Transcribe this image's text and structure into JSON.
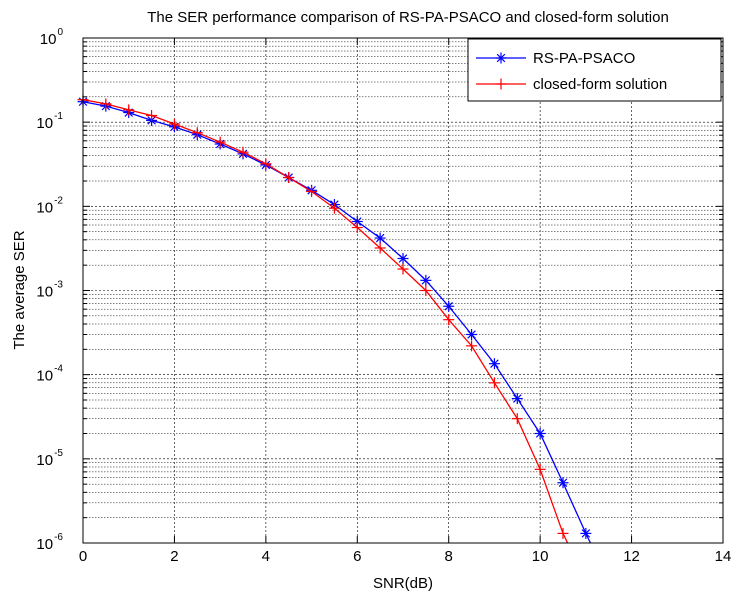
{
  "chart_data": {
    "type": "line",
    "title": "The SER performance comparison of RS-PA-PSACO and closed-form solution",
    "xlabel": "SNR(dB)",
    "ylabel": "The average SER",
    "xlim": [
      0,
      14
    ],
    "ylim": [
      1e-06,
      1
    ],
    "yscale": "log",
    "grid": true,
    "legend_position": "top-right",
    "x_ticks": [
      "0",
      "2",
      "4",
      "6",
      "8",
      "10",
      "12",
      "14"
    ],
    "y_ticks": [
      {
        "base": "10",
        "exp": "0"
      },
      {
        "base": "10",
        "exp": "-1"
      },
      {
        "base": "10",
        "exp": "-2"
      },
      {
        "base": "10",
        "exp": "-3"
      },
      {
        "base": "10",
        "exp": "-4"
      },
      {
        "base": "10",
        "exp": "-5"
      },
      {
        "base": "10",
        "exp": "-6"
      }
    ],
    "series": [
      {
        "name": "RS-PA-PSACO",
        "color": "#0000ff",
        "marker": "asterisk",
        "x": [
          0,
          0.5,
          1,
          1.5,
          2,
          2.5,
          3,
          3.5,
          4,
          4.5,
          5,
          5.5,
          6,
          6.5,
          7,
          7.5,
          8,
          8.5,
          9,
          9.5,
          10,
          10.5,
          11,
          11.1
        ],
        "y": [
          0.175,
          0.155,
          0.13,
          0.105,
          0.088,
          0.071,
          0.055,
          0.042,
          0.031,
          0.022,
          0.0155,
          0.0105,
          0.0066,
          0.0042,
          0.0024,
          0.00132,
          0.00065,
          0.0003,
          0.000135,
          5.2e-05,
          2e-05,
          5.2e-06,
          1.3e-06,
          1e-06
        ]
      },
      {
        "name": "closed-form solution",
        "color": "#ff0000",
        "marker": "plus",
        "x": [
          0,
          0.5,
          1,
          1.5,
          2,
          2.5,
          3,
          3.5,
          4,
          4.5,
          5,
          5.5,
          6,
          6.5,
          7,
          7.5,
          8,
          8.5,
          9,
          9.5,
          10,
          10.5,
          10.6
        ],
        "y": [
          0.185,
          0.165,
          0.14,
          0.12,
          0.095,
          0.075,
          0.058,
          0.044,
          0.032,
          0.022,
          0.015,
          0.0095,
          0.0056,
          0.0032,
          0.0018,
          0.001,
          0.00045,
          0.00022,
          8e-05,
          3e-05,
          7.5e-06,
          1.3e-06,
          1e-06
        ]
      }
    ]
  }
}
